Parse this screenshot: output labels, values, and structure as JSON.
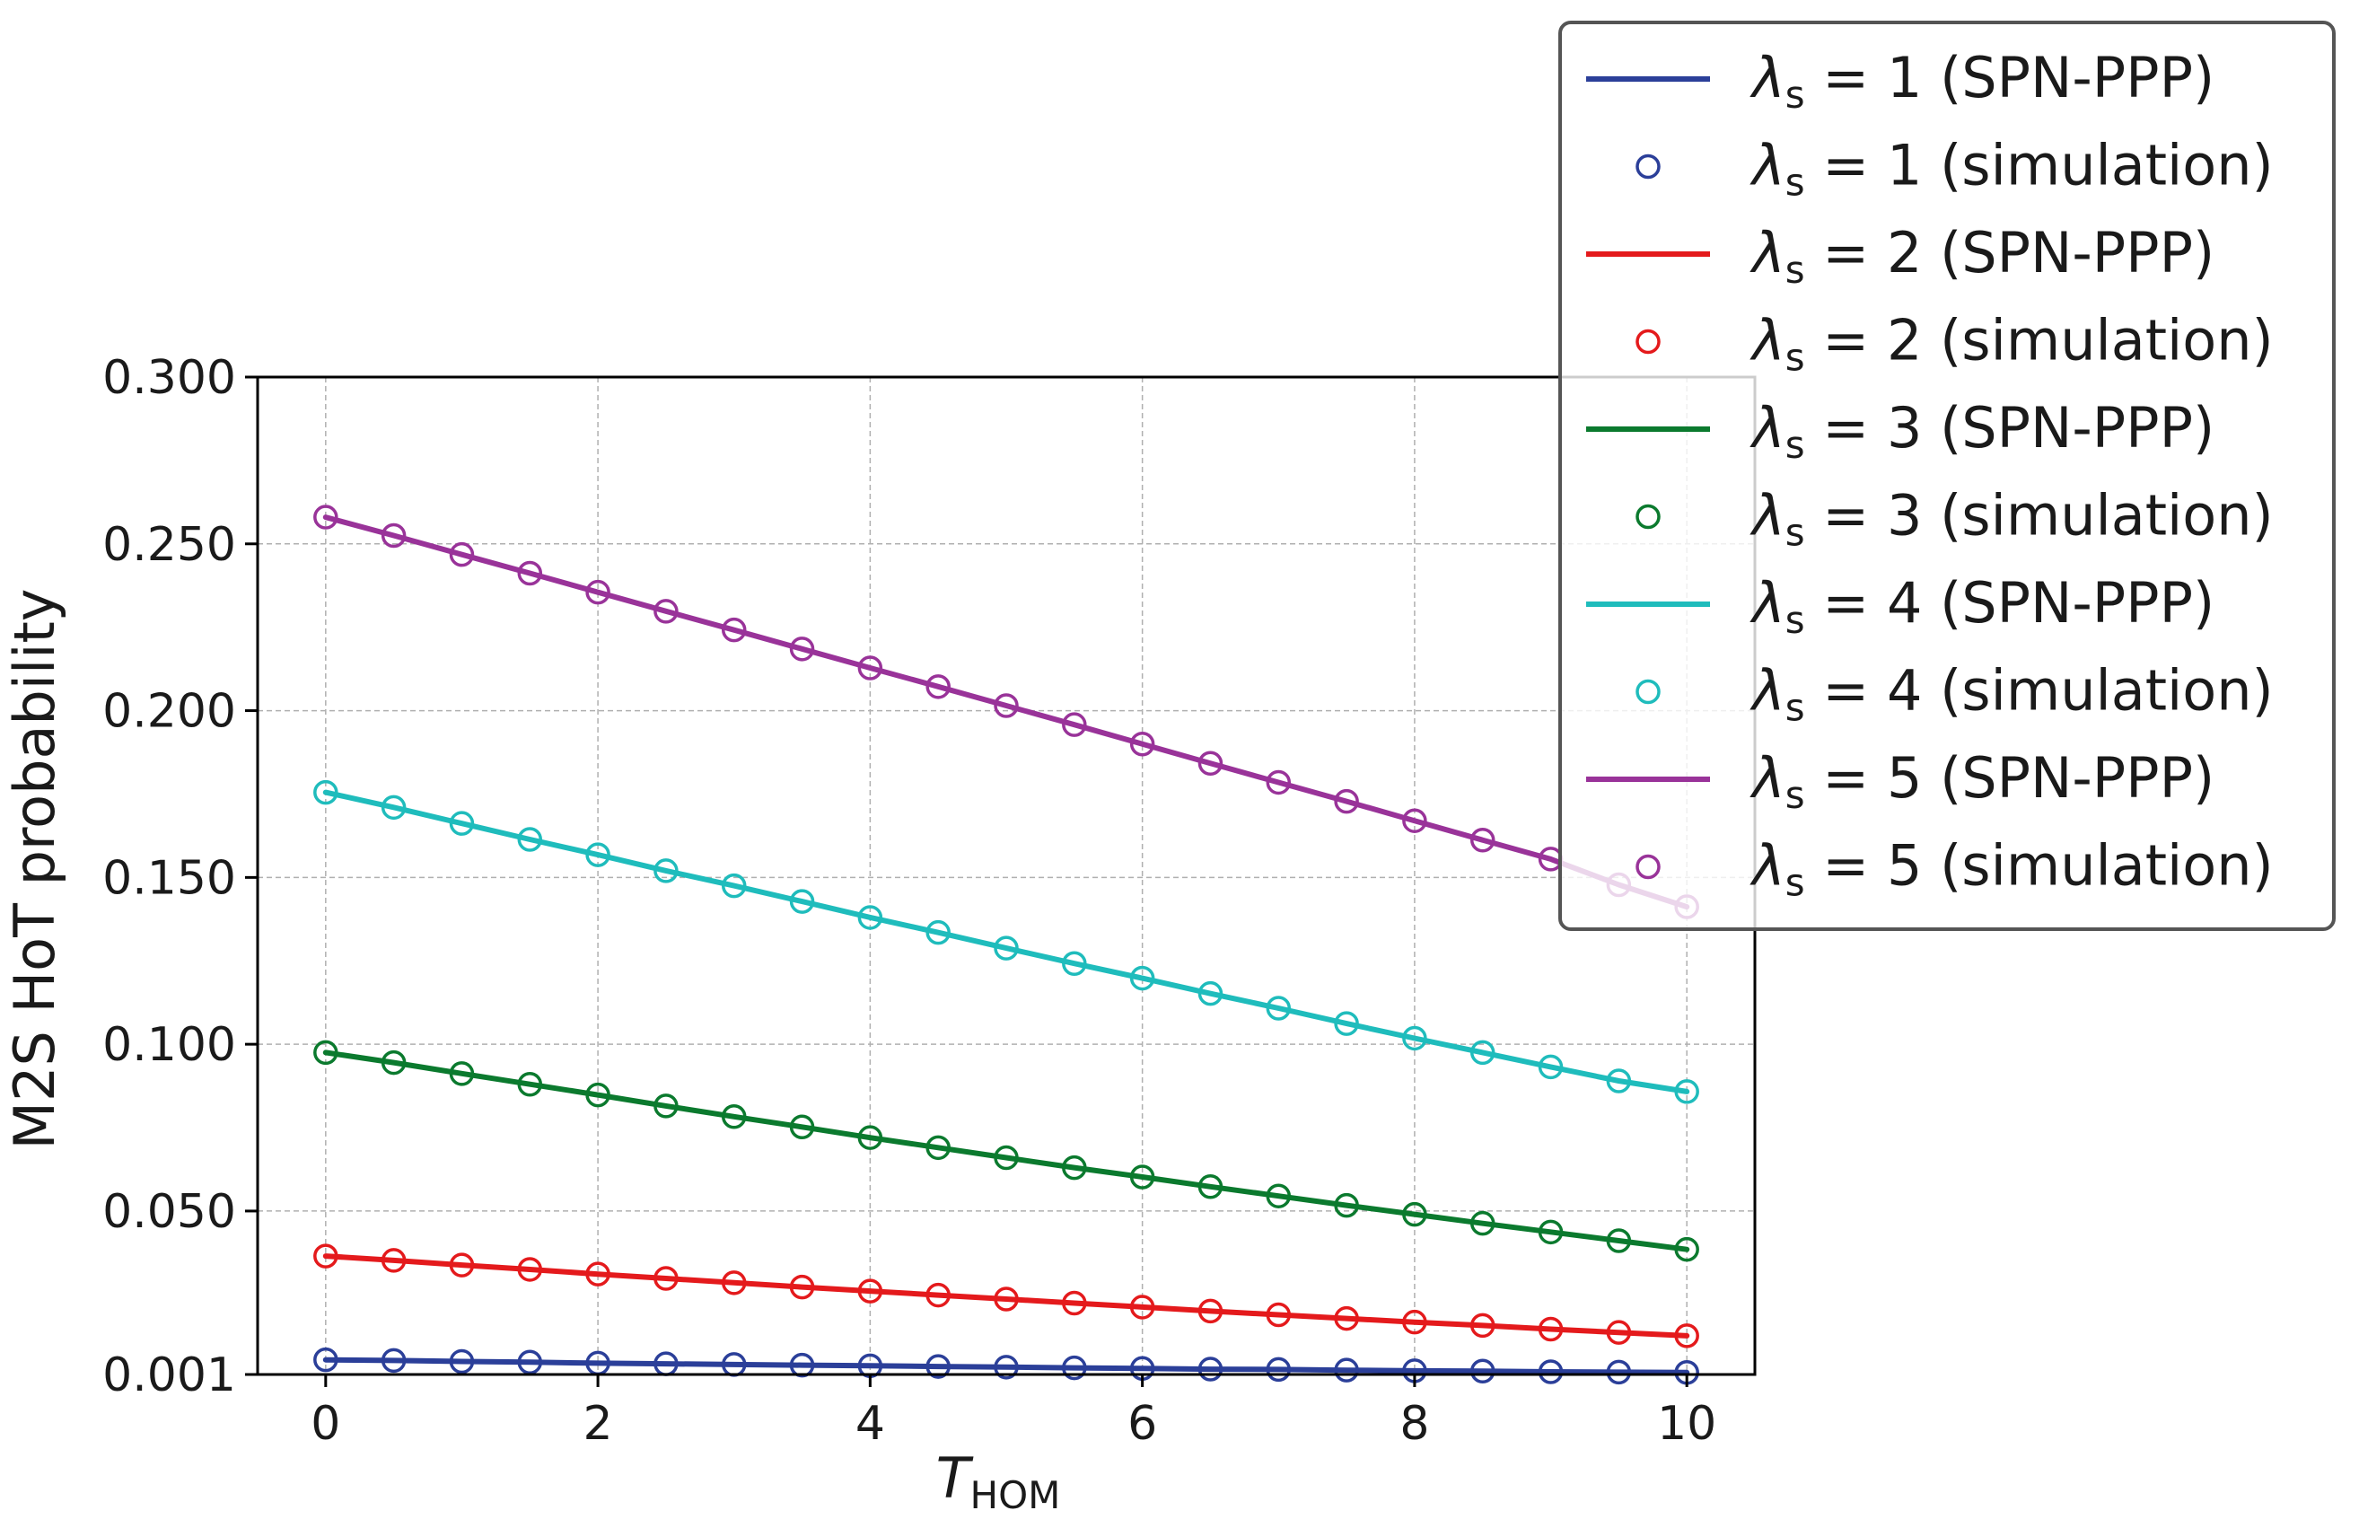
{
  "chart_data": {
    "type": "line",
    "title": "",
    "xlabel_base": "T",
    "xlabel_sub": "HOM",
    "ylabel": "M2S HoT probability",
    "xlim": [
      -0.5,
      10.5
    ],
    "ylim": [
      0.001,
      0.3
    ],
    "grid": true,
    "legend_position": "top-right (outside axes)",
    "x_ticks": [
      0,
      2,
      4,
      6,
      8,
      10
    ],
    "x_tick_labels": [
      "0",
      "2",
      "4",
      "6",
      "8",
      "10"
    ],
    "y_ticks": [
      0.001,
      0.05,
      0.1,
      0.15,
      0.2,
      0.25,
      0.3
    ],
    "y_tick_labels": [
      "0.001",
      "0.050",
      "0.100",
      "0.150",
      "0.200",
      "0.250",
      "0.300"
    ],
    "x": [
      0,
      0.5,
      1,
      1.5,
      2,
      2.5,
      3,
      3.5,
      4,
      4.5,
      5,
      5.5,
      6,
      6.5,
      7,
      7.5,
      8,
      8.5,
      9,
      9.5,
      10
    ],
    "series": [
      {
        "lambda": "1",
        "color": "#2b3f99",
        "legend_line": "λs = 1 (SPN-PPP)",
        "legend_sim": "λs = 1 (simulation)",
        "sim_values": [
          0.0054,
          0.0052,
          0.0049,
          0.0047,
          0.0044,
          0.0042,
          0.004,
          0.0038,
          0.0036,
          0.0034,
          0.0032,
          0.003,
          0.0028,
          0.0026,
          0.0025,
          0.0023,
          0.0021,
          0.002,
          0.0018,
          0.0017,
          0.0016
        ]
      },
      {
        "lambda": "2",
        "color": "#e41a1c",
        "legend_line": "λs = 2 (SPN-PPP)",
        "legend_sim": "λs = 2 (simulation)",
        "sim_values": [
          0.0365,
          0.0352,
          0.0338,
          0.0325,
          0.0311,
          0.0298,
          0.0285,
          0.0272,
          0.026,
          0.0248,
          0.0236,
          0.0224,
          0.0212,
          0.02,
          0.0189,
          0.0178,
          0.0167,
          0.0157,
          0.0146,
          0.0136,
          0.0126
        ]
      },
      {
        "lambda": "3",
        "color": "#0b7a2e",
        "legend_line": "λs = 3 (SPN-PPP)",
        "legend_sim": "λs = 3 (simulation)",
        "sim_values": [
          0.0975,
          0.0945,
          0.0912,
          0.088,
          0.0848,
          0.0815,
          0.0783,
          0.0752,
          0.072,
          0.069,
          0.066,
          0.063,
          0.0602,
          0.0573,
          0.0545,
          0.0517,
          0.049,
          0.0463,
          0.0437,
          0.0411,
          0.0385
        ]
      },
      {
        "lambda": "4",
        "color": "#1fbcbc",
        "legend_line": "λs = 4 (SPN-PPP)",
        "legend_sim": "λs = 4 (simulation)",
        "sim_values": [
          0.1755,
          0.171,
          0.1662,
          0.1614,
          0.1568,
          0.152,
          0.1475,
          0.1428,
          0.138,
          0.1335,
          0.1288,
          0.1242,
          0.1198,
          0.1152,
          0.1108,
          0.1062,
          0.1018,
          0.0975,
          0.0932,
          0.089,
          0.0858
        ]
      },
      {
        "lambda": "5",
        "color": "#993399",
        "legend_line": "λs = 5 (SPN-PPP)",
        "legend_sim": "λs = 5 (simulation)",
        "sim_values": [
          0.258,
          0.2525,
          0.2468,
          0.2412,
          0.2355,
          0.2298,
          0.2242,
          0.2185,
          0.2128,
          0.2072,
          0.2015,
          0.1958,
          0.19,
          0.1842,
          0.1785,
          0.1728,
          0.167,
          0.1612,
          0.1555,
          0.1478,
          0.1412
        ]
      }
    ]
  }
}
